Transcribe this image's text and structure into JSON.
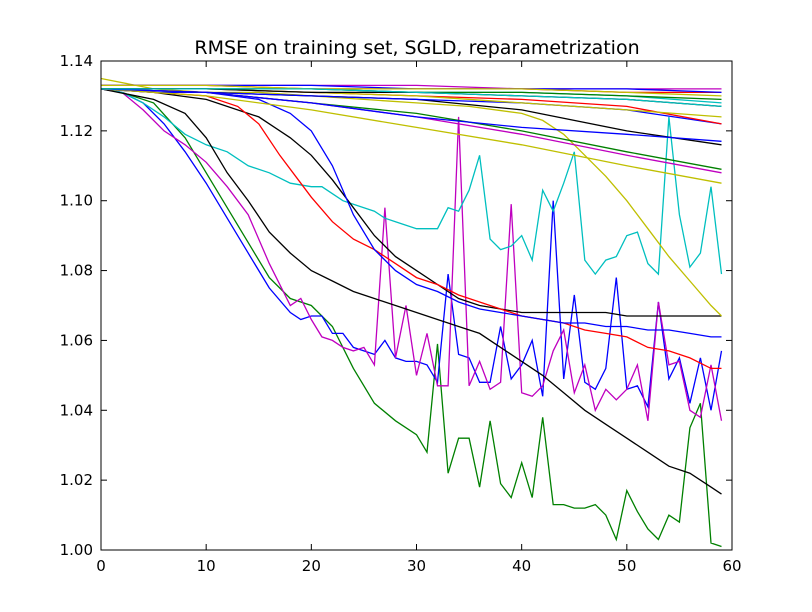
{
  "chart_data": {
    "type": "line",
    "title": "RMSE on training set, SGLD, reparametrization",
    "xlabel": "",
    "ylabel": "",
    "xlim": [
      0,
      60
    ],
    "ylim": [
      1.0,
      1.14
    ],
    "xticks": [
      "0",
      "10",
      "20",
      "30",
      "40",
      "50",
      "60"
    ],
    "yticks": [
      "1.00",
      "1.02",
      "1.04",
      "1.06",
      "1.08",
      "1.10",
      "1.12",
      "1.14"
    ],
    "grid": false,
    "legend": "none",
    "series": [
      {
        "color": "#008000",
        "x": [
          0,
          2,
          5,
          8,
          10,
          12,
          14,
          16,
          18,
          20,
          22,
          24,
          26,
          28,
          30,
          31,
          32,
          33,
          34,
          35,
          36,
          37,
          38,
          39,
          40,
          41,
          42,
          43,
          44,
          45,
          46,
          47,
          48,
          49,
          50,
          51,
          52,
          53,
          54,
          55,
          56,
          57,
          58,
          59
        ],
        "y": [
          1.132,
          1.131,
          1.128,
          1.118,
          1.108,
          1.098,
          1.088,
          1.078,
          1.072,
          1.07,
          1.064,
          1.052,
          1.042,
          1.037,
          1.033,
          1.028,
          1.059,
          1.022,
          1.032,
          1.032,
          1.018,
          1.037,
          1.019,
          1.015,
          1.025,
          1.015,
          1.038,
          1.013,
          1.013,
          1.012,
          1.012,
          1.013,
          1.01,
          1.003,
          1.017,
          1.011,
          1.006,
          1.003,
          1.01,
          1.008,
          1.035,
          1.042,
          1.002,
          1.001
        ]
      },
      {
        "color": "#0000ff",
        "x": [
          0,
          2,
          4,
          6,
          8,
          10,
          12,
          14,
          16,
          18,
          19,
          20,
          21,
          22,
          23,
          24,
          25,
          26,
          27,
          28,
          29,
          30,
          31,
          32,
          33,
          34,
          35,
          36,
          37,
          38,
          39,
          40,
          41,
          42,
          43,
          44,
          45,
          46,
          47,
          48,
          49,
          50,
          51,
          52,
          53,
          54,
          55,
          56,
          57,
          58,
          59
        ],
        "y": [
          1.132,
          1.131,
          1.128,
          1.122,
          1.114,
          1.105,
          1.095,
          1.085,
          1.075,
          1.068,
          1.066,
          1.067,
          1.067,
          1.062,
          1.062,
          1.058,
          1.057,
          1.056,
          1.06,
          1.055,
          1.054,
          1.054,
          1.053,
          1.048,
          1.079,
          1.056,
          1.055,
          1.048,
          1.048,
          1.064,
          1.049,
          1.053,
          1.06,
          1.044,
          1.1,
          1.049,
          1.073,
          1.048,
          1.046,
          1.052,
          1.078,
          1.046,
          1.047,
          1.041,
          1.071,
          1.049,
          1.055,
          1.042,
          1.055,
          1.04,
          1.057
        ]
      },
      {
        "color": "#bf00bf",
        "x": [
          0,
          2,
          4,
          6,
          8,
          10,
          12,
          14,
          16,
          18,
          19,
          20,
          21,
          22,
          23,
          24,
          25,
          26,
          27,
          28,
          29,
          30,
          31,
          32,
          33,
          34,
          35,
          36,
          37,
          38,
          39,
          40,
          41,
          42,
          43,
          44,
          45,
          46,
          47,
          48,
          49,
          50,
          51,
          52,
          53,
          54,
          55,
          56,
          57,
          58,
          59
        ],
        "y": [
          1.132,
          1.131,
          1.126,
          1.12,
          1.116,
          1.111,
          1.104,
          1.096,
          1.082,
          1.07,
          1.072,
          1.066,
          1.061,
          1.06,
          1.058,
          1.057,
          1.058,
          1.053,
          1.098,
          1.055,
          1.07,
          1.05,
          1.062,
          1.047,
          1.047,
          1.124,
          1.047,
          1.054,
          1.046,
          1.048,
          1.099,
          1.045,
          1.044,
          1.047,
          1.057,
          1.063,
          1.045,
          1.053,
          1.04,
          1.046,
          1.043,
          1.046,
          1.053,
          1.037,
          1.071,
          1.053,
          1.054,
          1.04,
          1.038,
          1.053,
          1.037
        ]
      },
      {
        "color": "#00bfbf",
        "x": [
          0,
          2,
          4,
          6,
          8,
          10,
          12,
          14,
          16,
          18,
          20,
          21,
          22,
          23,
          24,
          25,
          26,
          27,
          28,
          29,
          30,
          31,
          32,
          33,
          34,
          35,
          36,
          37,
          38,
          39,
          40,
          41,
          42,
          43,
          44,
          45,
          46,
          47,
          48,
          49,
          50,
          51,
          52,
          53,
          54,
          55,
          56,
          57,
          58,
          59
        ],
        "y": [
          1.132,
          1.131,
          1.128,
          1.124,
          1.119,
          1.116,
          1.114,
          1.11,
          1.108,
          1.105,
          1.104,
          1.104,
          1.102,
          1.1,
          1.099,
          1.098,
          1.097,
          1.095,
          1.094,
          1.093,
          1.092,
          1.092,
          1.092,
          1.098,
          1.097,
          1.103,
          1.113,
          1.089,
          1.086,
          1.087,
          1.09,
          1.083,
          1.103,
          1.097,
          1.105,
          1.114,
          1.083,
          1.079,
          1.083,
          1.084,
          1.09,
          1.091,
          1.082,
          1.079,
          1.124,
          1.096,
          1.081,
          1.085,
          1.104,
          1.079
        ]
      },
      {
        "color": "#000000",
        "x": [
          0,
          5,
          8,
          10,
          12,
          14,
          16,
          18,
          20,
          22,
          24,
          26,
          28,
          30,
          32,
          34,
          36,
          38,
          40,
          42,
          44,
          46,
          48,
          50,
          52,
          54,
          56,
          58,
          59
        ],
        "y": [
          1.132,
          1.129,
          1.125,
          1.118,
          1.108,
          1.1,
          1.091,
          1.085,
          1.08,
          1.077,
          1.074,
          1.072,
          1.07,
          1.068,
          1.066,
          1.064,
          1.062,
          1.058,
          1.054,
          1.05,
          1.045,
          1.04,
          1.036,
          1.032,
          1.028,
          1.024,
          1.022,
          1.018,
          1.016
        ]
      },
      {
        "color": "#000000",
        "x": [
          0,
          5,
          10,
          15,
          18,
          20,
          22,
          24,
          26,
          28,
          30,
          32,
          34,
          36,
          38,
          40,
          42,
          44,
          46,
          48,
          50,
          52,
          54,
          56,
          58,
          59
        ],
        "y": [
          1.132,
          1.131,
          1.129,
          1.124,
          1.118,
          1.113,
          1.106,
          1.098,
          1.09,
          1.084,
          1.08,
          1.076,
          1.072,
          1.07,
          1.069,
          1.068,
          1.068,
          1.068,
          1.068,
          1.068,
          1.067,
          1.067,
          1.067,
          1.067,
          1.067,
          1.067
        ]
      },
      {
        "color": "#ff0000",
        "x": [
          0,
          5,
          10,
          13,
          15,
          17,
          19,
          20,
          22,
          24,
          26,
          28,
          30,
          32,
          34,
          36,
          38,
          40,
          42,
          44,
          46,
          48,
          50,
          52,
          54,
          56,
          58,
          59
        ],
        "y": [
          1.132,
          1.131,
          1.13,
          1.127,
          1.122,
          1.113,
          1.105,
          1.101,
          1.094,
          1.089,
          1.086,
          1.082,
          1.078,
          1.076,
          1.073,
          1.071,
          1.069,
          1.067,
          1.066,
          1.065,
          1.063,
          1.062,
          1.061,
          1.058,
          1.057,
          1.055,
          1.052,
          1.052
        ]
      },
      {
        "color": "#0000ff",
        "x": [
          0,
          5,
          10,
          15,
          18,
          20,
          22,
          24,
          26,
          28,
          30,
          32,
          34,
          36,
          38,
          40,
          42,
          44,
          46,
          48,
          50,
          52,
          54,
          56,
          58,
          59
        ],
        "y": [
          1.132,
          1.131,
          1.131,
          1.129,
          1.125,
          1.12,
          1.11,
          1.096,
          1.086,
          1.08,
          1.076,
          1.074,
          1.071,
          1.069,
          1.068,
          1.067,
          1.066,
          1.065,
          1.065,
          1.064,
          1.064,
          1.063,
          1.063,
          1.062,
          1.061,
          1.061
        ]
      },
      {
        "color": "#bfbf00",
        "x": [
          0,
          5,
          10,
          15,
          20,
          25,
          30,
          35,
          40,
          42,
          44,
          46,
          48,
          50,
          52,
          54,
          56,
          58,
          59
        ],
        "y": [
          1.135,
          1.132,
          1.131,
          1.131,
          1.13,
          1.129,
          1.128,
          1.127,
          1.125,
          1.123,
          1.119,
          1.113,
          1.107,
          1.1,
          1.092,
          1.084,
          1.077,
          1.07,
          1.067
        ]
      },
      {
        "color": "#000000",
        "x": [
          0,
          10,
          20,
          30,
          40,
          50,
          59
        ],
        "y": [
          1.132,
          1.131,
          1.13,
          1.129,
          1.126,
          1.12,
          1.116
        ]
      },
      {
        "color": "#0000ff",
        "x": [
          0,
          10,
          20,
          30,
          40,
          50,
          59
        ],
        "y": [
          1.132,
          1.131,
          1.13,
          1.129,
          1.128,
          1.126,
          1.122
        ]
      },
      {
        "color": "#ff0000",
        "x": [
          0,
          10,
          20,
          30,
          40,
          50,
          59
        ],
        "y": [
          1.132,
          1.132,
          1.131,
          1.13,
          1.129,
          1.127,
          1.122
        ]
      },
      {
        "color": "#008000",
        "x": [
          0,
          10,
          20,
          30,
          40,
          50,
          59
        ],
        "y": [
          1.132,
          1.131,
          1.128,
          1.125,
          1.12,
          1.114,
          1.109
        ]
      },
      {
        "color": "#bf00bf",
        "x": [
          0,
          10,
          20,
          30,
          40,
          50,
          59
        ],
        "y": [
          1.132,
          1.131,
          1.128,
          1.124,
          1.119,
          1.113,
          1.108
        ]
      },
      {
        "color": "#bfbf00",
        "x": [
          0,
          10,
          20,
          30,
          40,
          50,
          59
        ],
        "y": [
          1.132,
          1.13,
          1.126,
          1.121,
          1.116,
          1.11,
          1.105
        ]
      },
      {
        "color": "#bfbf00",
        "x": [
          0,
          10,
          20,
          30,
          40,
          50,
          59
        ],
        "y": [
          1.132,
          1.132,
          1.131,
          1.13,
          1.128,
          1.126,
          1.124
        ]
      },
      {
        "color": "#0000ff",
        "x": [
          0,
          10,
          20,
          30,
          40,
          50,
          59
        ],
        "y": [
          1.132,
          1.131,
          1.128,
          1.124,
          1.121,
          1.119,
          1.117
        ]
      },
      {
        "color": "#00bfbf",
        "x": [
          0,
          10,
          20,
          30,
          40,
          50,
          59
        ],
        "y": [
          1.132,
          1.132,
          1.132,
          1.131,
          1.131,
          1.13,
          1.128
        ]
      },
      {
        "color": "#008000",
        "x": [
          0,
          10,
          20,
          30,
          40,
          50,
          59
        ],
        "y": [
          1.132,
          1.132,
          1.132,
          1.131,
          1.131,
          1.13,
          1.129
        ]
      },
      {
        "color": "#000000",
        "x": [
          0,
          10,
          20,
          30,
          40,
          50,
          59
        ],
        "y": [
          1.132,
          1.132,
          1.131,
          1.131,
          1.13,
          1.129,
          1.127
        ]
      },
      {
        "color": "#ff0000",
        "x": [
          0,
          10,
          20,
          30,
          40,
          50,
          59
        ],
        "y": [
          1.133,
          1.133,
          1.132,
          1.132,
          1.132,
          1.131,
          1.131
        ]
      },
      {
        "color": "#bf00bf",
        "x": [
          0,
          10,
          20,
          30,
          40,
          50,
          59
        ],
        "y": [
          1.133,
          1.133,
          1.133,
          1.133,
          1.132,
          1.132,
          1.132
        ]
      },
      {
        "color": "#0000ff",
        "x": [
          0,
          10,
          20,
          30,
          40,
          50,
          59
        ],
        "y": [
          1.133,
          1.133,
          1.133,
          1.132,
          1.132,
          1.132,
          1.131
        ]
      },
      {
        "color": "#bfbf00",
        "x": [
          0,
          10,
          20,
          30,
          40,
          50,
          59
        ],
        "y": [
          1.133,
          1.133,
          1.132,
          1.132,
          1.132,
          1.131,
          1.13
        ]
      },
      {
        "color": "#00bfbf",
        "x": [
          0,
          10,
          20,
          30,
          40,
          50,
          59
        ],
        "y": [
          1.132,
          1.132,
          1.132,
          1.131,
          1.13,
          1.129,
          1.127
        ]
      }
    ]
  }
}
